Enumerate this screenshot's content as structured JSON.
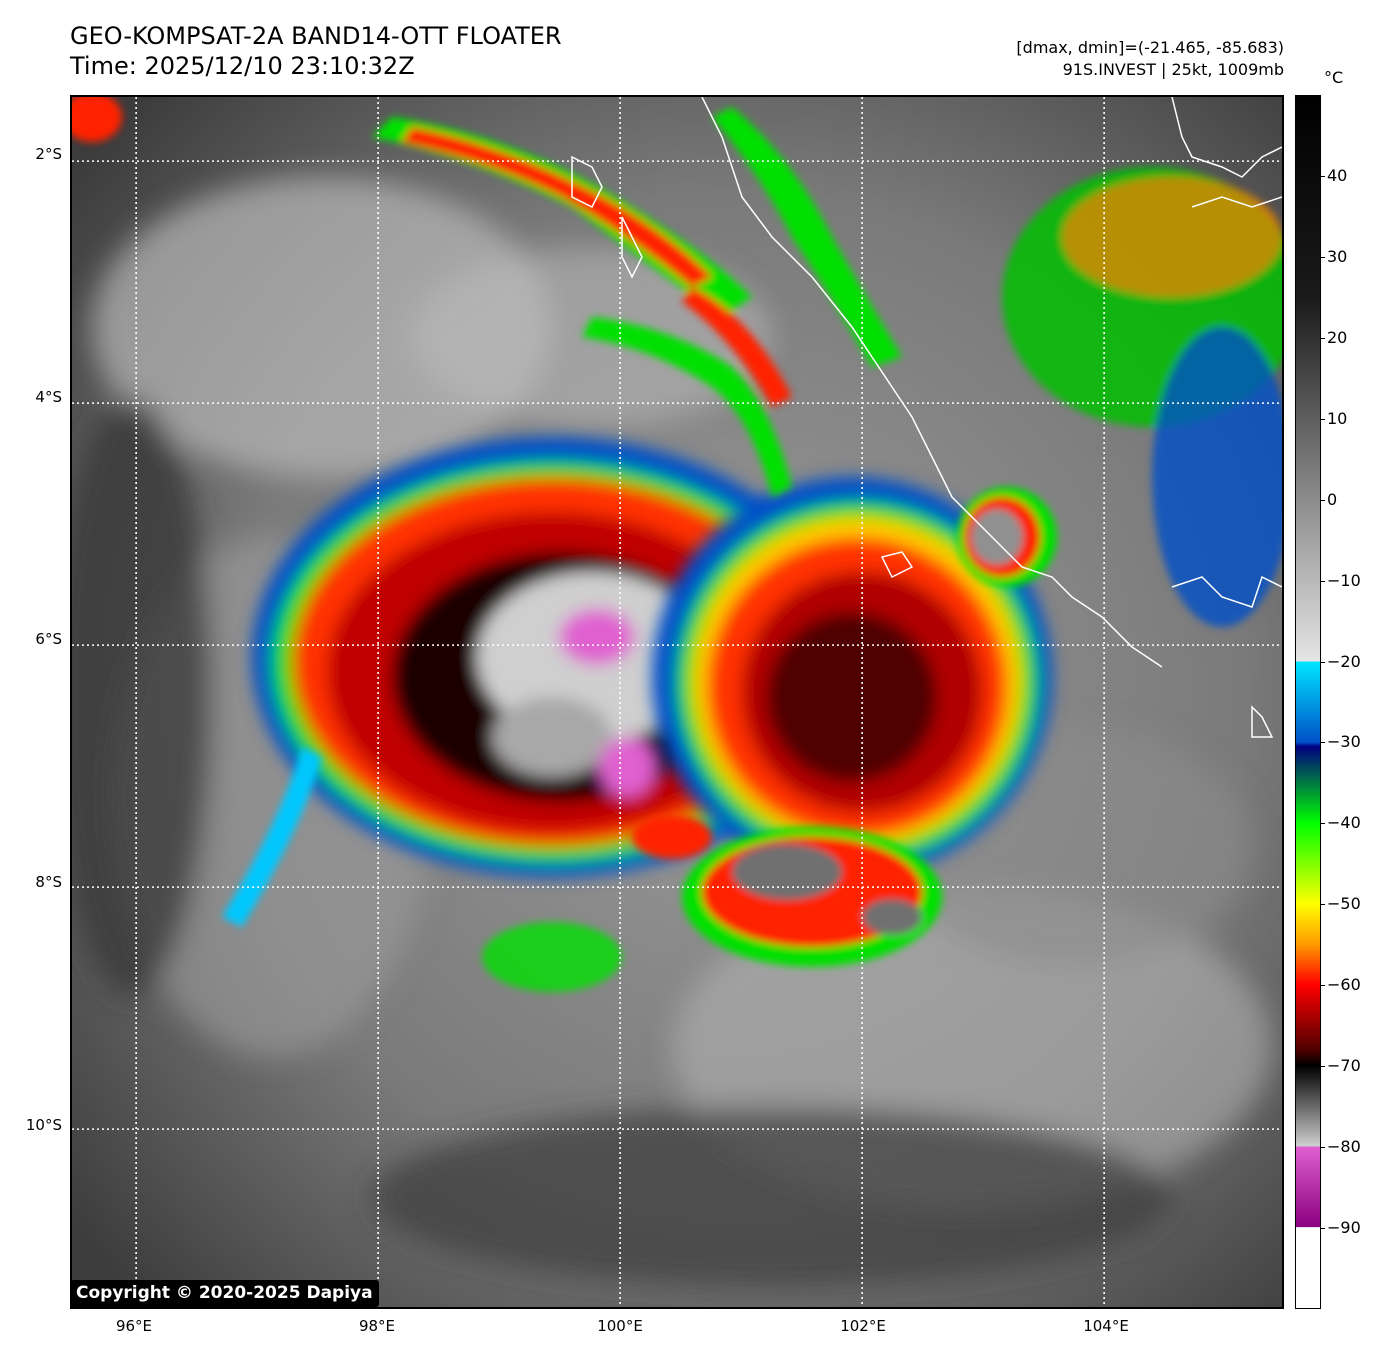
{
  "title": {
    "line1": "GEO-KOMPSAT-2A BAND14-OTT FLOATER",
    "line2": "Time: 2025/12/10 23:10:32Z"
  },
  "info": {
    "line1": "[dmax, dmin]=(-21.465, -85.683)",
    "line2": "91S.INVEST | 25kt, 1009mb"
  },
  "map": {
    "lat_labels": [
      "2°S",
      "4°S",
      "6°S",
      "8°S",
      "10°S"
    ],
    "lon_labels": [
      "96°E",
      "98°E",
      "100°E",
      "102°E",
      "104°E"
    ],
    "lat_values": [
      -2,
      -4,
      -6,
      -8,
      -10
    ],
    "lon_values": [
      96,
      98,
      100,
      102,
      104
    ],
    "lon_range": [
      95.47,
      105.47
    ],
    "lat_range": [
      -11.47,
      -1.47
    ],
    "gridlines": true,
    "coastline_color": "#ffffff"
  },
  "colorbar": {
    "unit": "°C",
    "ticks": [
      "40",
      "30",
      "20",
      "10",
      "0",
      "−10",
      "−20",
      "−30",
      "−40",
      "−50",
      "−60",
      "−70",
      "−80",
      "−90"
    ],
    "tick_values": [
      40,
      30,
      20,
      10,
      0,
      -10,
      -20,
      -30,
      -40,
      -50,
      -60,
      -70,
      -80,
      -90
    ],
    "range": [
      -100,
      50
    ],
    "colors": {
      "top": "#000000",
      "gray_light": "#e6e6e6",
      "cyan": "#00e5ff",
      "blue": "#0050c8",
      "navy": "#000080",
      "green": "#00ff00",
      "yellow": "#ffff00",
      "orange": "#ff9900",
      "red": "#ff0000",
      "dark_red": "#500000",
      "magenta": "#e060d0",
      "purple": "#8a0080",
      "white": "#ffffff"
    }
  },
  "copyright": "Copyright © 2020-2025 Dapiya"
}
